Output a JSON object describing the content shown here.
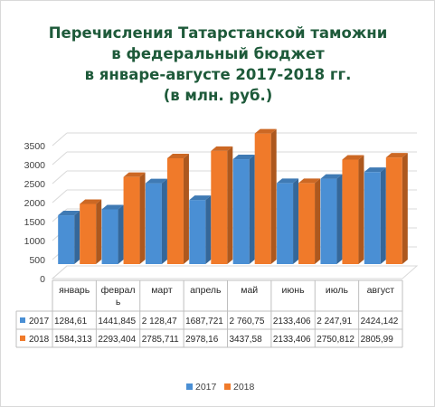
{
  "chart_data": {
    "type": "bar",
    "title_lines": [
      "Перечисления Татарстанской таможни",
      "в федеральный бюджет",
      "в январе-августе  2017-2018 гг.",
      "(в млн. руб.)"
    ],
    "categories": [
      "январь",
      "февраль",
      "март",
      "апрель",
      "май",
      "июнь",
      "июль",
      "август"
    ],
    "category_label_lines": [
      [
        "январь"
      ],
      [
        "феврал",
        "ь"
      ],
      [
        "март"
      ],
      [
        "апрель"
      ],
      [
        "май"
      ],
      [
        "июнь"
      ],
      [
        "июль"
      ],
      [
        "август"
      ]
    ],
    "y_ticks": [
      "0",
      "500",
      "1000",
      "1500",
      "2000",
      "2500",
      "3000",
      "3500"
    ],
    "ylim": [
      0,
      3500
    ],
    "series": [
      {
        "name": "2017",
        "color": "#4a8fd4",
        "values": [
          1284.61,
          1441.845,
          2128.47,
          1687.721,
          2760.75,
          2133.406,
          2247.91,
          2424.142
        ],
        "labels": [
          "1284,61",
          "1441,845",
          "2 128,47",
          "1687,721",
          "2 760,75",
          "2133,406",
          "2 247,91",
          "2424,142"
        ]
      },
      {
        "name": "2018",
        "color": "#f07a2a",
        "values": [
          1584.313,
          2293.404,
          2785.711,
          2978.16,
          3437.58,
          2133.406,
          2750.812,
          2805.99
        ],
        "labels": [
          "1584,313",
          "2293,404",
          "2785,711",
          "2978,16",
          "3437,58",
          "2133,406",
          "2750,812",
          "2805,99"
        ]
      }
    ],
    "grid": true,
    "data_table": true,
    "legend": "bottom"
  }
}
